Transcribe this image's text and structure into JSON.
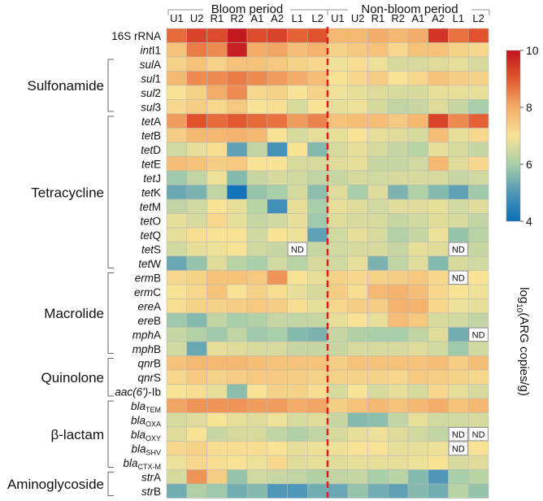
{
  "chart_data": {
    "type": "heatmap",
    "title": "",
    "period_labels": [
      "Bloom period",
      "Non-bloom period"
    ],
    "columns": [
      "U1",
      "U2",
      "R1",
      "R2",
      "A1",
      "A2",
      "L1",
      "L2",
      "U1",
      "U2",
      "R1",
      "R2",
      "A1",
      "A2",
      "L1",
      "L2"
    ],
    "rows": [
      {
        "pre": "16S rRNA",
        "it": "",
        "post": "",
        "sub": ""
      },
      {
        "pre": "",
        "it": "int",
        "post": "I1",
        "sub": ""
      },
      {
        "pre": "",
        "it": "sul",
        "post": "A",
        "sub": ""
      },
      {
        "pre": "",
        "it": "sul",
        "post": "1",
        "sub": ""
      },
      {
        "pre": "",
        "it": "sul",
        "post": "2",
        "sub": ""
      },
      {
        "pre": "",
        "it": "sul",
        "post": "3",
        "sub": ""
      },
      {
        "pre": "",
        "it": "tet",
        "post": "A",
        "sub": ""
      },
      {
        "pre": "",
        "it": "tet",
        "post": "B",
        "sub": ""
      },
      {
        "pre": "",
        "it": "tet",
        "post": "D",
        "sub": ""
      },
      {
        "pre": "",
        "it": "tet",
        "post": "E",
        "sub": ""
      },
      {
        "pre": "",
        "it": "tet",
        "post": "J",
        "sub": ""
      },
      {
        "pre": "",
        "it": "tet",
        "post": "K",
        "sub": ""
      },
      {
        "pre": "",
        "it": "tet",
        "post": "M",
        "sub": ""
      },
      {
        "pre": "",
        "it": "tet",
        "post": "O",
        "sub": ""
      },
      {
        "pre": "",
        "it": "tet",
        "post": "Q",
        "sub": ""
      },
      {
        "pre": "",
        "it": "tet",
        "post": "S",
        "sub": ""
      },
      {
        "pre": "",
        "it": "tet",
        "post": "W",
        "sub": ""
      },
      {
        "pre": "",
        "it": "erm",
        "post": "B",
        "sub": ""
      },
      {
        "pre": "",
        "it": "erm",
        "post": "C",
        "sub": ""
      },
      {
        "pre": "",
        "it": "ere",
        "post": "A",
        "sub": ""
      },
      {
        "pre": "",
        "it": "ere",
        "post": "B",
        "sub": ""
      },
      {
        "pre": "",
        "it": "mph",
        "post": "A",
        "sub": ""
      },
      {
        "pre": "",
        "it": "mph",
        "post": "B",
        "sub": ""
      },
      {
        "pre": "",
        "it": "qnr",
        "post": "B",
        "sub": ""
      },
      {
        "pre": "",
        "it": "qnr",
        "post": "S",
        "sub": ""
      },
      {
        "pre": "",
        "it": "aac(6')",
        "post": "-Ib",
        "sub": ""
      },
      {
        "pre": "",
        "it": "bla",
        "post": "",
        "sub": "TEM"
      },
      {
        "pre": "",
        "it": "bla",
        "post": "",
        "sub": "OXA"
      },
      {
        "pre": "",
        "it": "bla",
        "post": "",
        "sub": "OXY"
      },
      {
        "pre": "",
        "it": "bla",
        "post": "",
        "sub": "SHV"
      },
      {
        "pre": "",
        "it": "bla",
        "post": "",
        "sub": "CTX-M"
      },
      {
        "pre": "",
        "it": "str",
        "post": "A",
        "sub": ""
      },
      {
        "pre": "",
        "it": "str",
        "post": "B",
        "sub": ""
      }
    ],
    "groups": [
      {
        "label": "Sulfonamide",
        "start": 2,
        "end": 5
      },
      {
        "label": "Tetracycline",
        "start": 6,
        "end": 16
      },
      {
        "label": "Macrolide",
        "start": 17,
        "end": 22
      },
      {
        "label": "Quinolone",
        "start": 23,
        "end": 25
      },
      {
        "label": "β-lactam",
        "start": 26,
        "end": 30
      },
      {
        "label": "Aminoglycoside",
        "start": 31,
        "end": 32
      }
    ],
    "values": [
      [
        8.8,
        9.3,
        9.2,
        9.9,
        9.2,
        9.3,
        8.9,
        9.1,
        7.8,
        7.8,
        8.0,
        7.8,
        8.0,
        9.5,
        8.7,
        9.1
      ],
      [
        7.6,
        8.6,
        8.4,
        9.8,
        8.0,
        8.1,
        7.7,
        7.9,
        7.3,
        7.5,
        7.6,
        7.2,
        7.6,
        7.6,
        7.3,
        7.2
      ],
      [
        7.3,
        7.6,
        7.3,
        7.6,
        7.6,
        7.5,
        7.3,
        7.2,
        6.9,
        7.1,
        6.9,
        6.6,
        6.6,
        6.7,
        6.8,
        6.6
      ],
      [
        7.8,
        8.4,
        8.4,
        8.6,
        8.4,
        8.2,
        8.0,
        7.7,
        7.0,
        7.2,
        7.4,
        7.0,
        7.2,
        7.6,
        7.4,
        7.3
      ],
      [
        7.0,
        7.3,
        8.0,
        8.4,
        7.2,
        7.3,
        7.0,
        7.3,
        6.9,
        6.8,
        6.7,
        6.6,
        6.6,
        6.8,
        6.8,
        6.8
      ],
      [
        7.2,
        7.4,
        7.2,
        7.5,
        7.0,
        7.1,
        6.6,
        7.0,
        6.8,
        6.9,
        6.6,
        6.3,
        6.4,
        6.7,
        6.4,
        6.0
      ],
      [
        8.2,
        9.1,
        8.8,
        9.0,
        8.8,
        8.7,
        8.2,
        8.5,
        7.6,
        7.7,
        7.7,
        7.5,
        7.8,
        9.3,
        8.4,
        8.9
      ],
      [
        7.4,
        7.8,
        7.8,
        7.9,
        7.8,
        7.0,
        6.6,
        6.8,
        6.8,
        7.0,
        6.8,
        6.7,
        6.6,
        7.7,
        6.8,
        7.2
      ],
      [
        6.5,
        6.8,
        7.1,
        5.2,
        6.3,
        4.9,
        7.0,
        5.6,
        6.6,
        6.8,
        6.6,
        6.4,
        6.2,
        6.8,
        6.6,
        6.4
      ],
      [
        7.7,
        7.6,
        7.4,
        7.5,
        7.0,
        7.0,
        6.6,
        6.6,
        6.7,
        6.8,
        6.4,
        6.4,
        6.5,
        7.8,
        6.7,
        7.2
      ],
      [
        5.9,
        6.3,
        6.9,
        5.6,
        6.4,
        6.6,
        6.5,
        6.3,
        6.4,
        6.6,
        6.5,
        6.6,
        6.6,
        6.6,
        6.4,
        6.5
      ],
      [
        5.3,
        5.5,
        6.3,
        4.1,
        5.8,
        6.0,
        6.6,
        5.7,
        6.7,
        6.0,
        6.7,
        5.5,
        6.1,
        5.6,
        5.2,
        5.9
      ],
      [
        6.3,
        6.5,
        7.0,
        6.8,
        6.2,
        4.8,
        6.8,
        6.0,
        6.8,
        6.7,
        6.5,
        6.7,
        6.7,
        6.8,
        6.5,
        6.7
      ],
      [
        6.8,
        6.6,
        7.2,
        6.8,
        6.4,
        6.5,
        6.8,
        5.9,
        6.7,
        6.6,
        6.6,
        6.4,
        6.5,
        6.7,
        6.6,
        6.3
      ],
      [
        6.8,
        7.1,
        7.0,
        7.0,
        6.5,
        7.0,
        6.9,
        5.2,
        6.5,
        6.8,
        6.6,
        6.1,
        6.4,
        6.9,
        5.8,
        6.2
      ],
      [
        6.5,
        6.8,
        6.9,
        7.0,
        6.5,
        6.4,
        null,
        6.4,
        6.5,
        6.6,
        6.6,
        6.4,
        6.8,
        6.7,
        null,
        6.4
      ],
      [
        5.3,
        5.8,
        6.7,
        6.2,
        6.0,
        6.5,
        6.2,
        6.6,
        6.5,
        6.8,
        5.5,
        6.3,
        6.7,
        5.6,
        6.6,
        6.5
      ],
      [
        7.2,
        7.3,
        7.6,
        7.6,
        7.5,
        8.3,
        7.0,
        6.8,
        7.3,
        7.2,
        7.3,
        7.4,
        7.5,
        7.2,
        null,
        7.0
      ],
      [
        7.0,
        7.2,
        7.6,
        7.0,
        7.3,
        7.1,
        6.8,
        6.6,
        7.4,
        7.1,
        7.8,
        7.9,
        7.7,
        7.2,
        7.0,
        6.9
      ],
      [
        7.1,
        7.3,
        7.3,
        7.4,
        7.5,
        7.4,
        7.1,
        6.8,
        7.2,
        7.4,
        7.4,
        7.9,
        7.9,
        7.2,
        6.9,
        6.8
      ],
      [
        5.9,
        5.6,
        6.3,
        6.0,
        6.1,
        6.4,
        6.3,
        6.4,
        6.8,
        7.0,
        6.8,
        7.7,
        7.5,
        6.6,
        6.5,
        6.3
      ],
      [
        6.4,
        6.1,
        5.9,
        6.3,
        5.9,
        6.0,
        5.6,
        5.5,
        6.4,
        6.1,
        6.0,
        6.0,
        6.3,
        6.7,
        5.4,
        null
      ],
      [
        6.5,
        5.3,
        6.8,
        6.7,
        6.6,
        6.6,
        6.4,
        6.4,
        6.4,
        6.6,
        6.6,
        6.6,
        6.7,
        6.5,
        5.9,
        6.5
      ],
      [
        7.6,
        7.8,
        7.8,
        7.8,
        7.7,
        7.6,
        7.6,
        7.6,
        7.4,
        7.6,
        7.6,
        7.6,
        7.6,
        7.7,
        7.4,
        7.7
      ],
      [
        7.2,
        7.5,
        7.3,
        7.4,
        7.5,
        7.5,
        7.4,
        7.3,
        7.3,
        7.3,
        7.3,
        7.2,
        7.5,
        7.4,
        7.3,
        7.2
      ],
      [
        7.0,
        7.1,
        6.8,
        5.7,
        7.0,
        7.3,
        7.3,
        7.1,
        6.6,
        7.0,
        6.6,
        6.8,
        6.6,
        7.2,
        6.8,
        6.6
      ],
      [
        8.1,
        8.3,
        8.3,
        8.3,
        8.2,
        8.2,
        8.0,
        8.1,
        7.4,
        7.6,
        7.8,
        7.6,
        7.8,
        8.0,
        7.6,
        7.8
      ],
      [
        6.6,
        6.7,
        7.0,
        6.8,
        6.7,
        6.9,
        6.6,
        6.7,
        6.4,
        5.6,
        5.7,
        6.3,
        6.8,
        6.5,
        6.5,
        6.6
      ],
      [
        6.7,
        7.0,
        6.4,
        6.6,
        6.6,
        6.3,
        6.1,
        6.3,
        6.6,
        6.8,
        6.9,
        6.7,
        6.5,
        6.3,
        null,
        null
      ],
      [
        7.2,
        7.3,
        7.1,
        7.1,
        7.1,
        7.0,
        6.8,
        6.9,
        6.9,
        7.0,
        7.0,
        6.8,
        6.8,
        6.9,
        null,
        7.0
      ],
      [
        6.9,
        7.2,
        7.1,
        7.0,
        6.9,
        7.2,
        6.7,
        6.8,
        6.7,
        6.8,
        6.8,
        6.8,
        6.9,
        7.0,
        6.6,
        6.7
      ],
      [
        6.6,
        8.3,
        7.4,
        5.8,
        6.5,
        6.4,
        6.3,
        6.1,
        6.3,
        6.4,
        6.0,
        6.2,
        5.6,
        5.0,
        6.0,
        6.2
      ],
      [
        5.4,
        6.1,
        5.9,
        5.4,
        5.6,
        5.0,
        5.0,
        5.4,
        5.3,
        5.8,
        5.4,
        5.2,
        5.6,
        5.4,
        6.2,
        5.8
      ]
    ],
    "missing_label": "ND",
    "divider": "dashed red line between bloom and non-bloom columns",
    "colorscale": {
      "min": 4,
      "max": 10,
      "ticks": [
        "10",
        "8",
        "6",
        "4"
      ],
      "tick_values": [
        10,
        8,
        6,
        4
      ],
      "stops": [
        {
          "v": 4,
          "c": "#0b6fb8"
        },
        {
          "v": 5,
          "c": "#4e97b8"
        },
        {
          "v": 6,
          "c": "#a8cfa8"
        },
        {
          "v": 7,
          "c": "#f7e296"
        },
        {
          "v": 8,
          "c": "#f4ad68"
        },
        {
          "v": 9,
          "c": "#e2592f"
        },
        {
          "v": 10,
          "c": "#c2111d"
        }
      ]
    },
    "colorbar_label": {
      "pre": "log",
      "sub": "10",
      "post": "(ARG copies/g)"
    }
  }
}
